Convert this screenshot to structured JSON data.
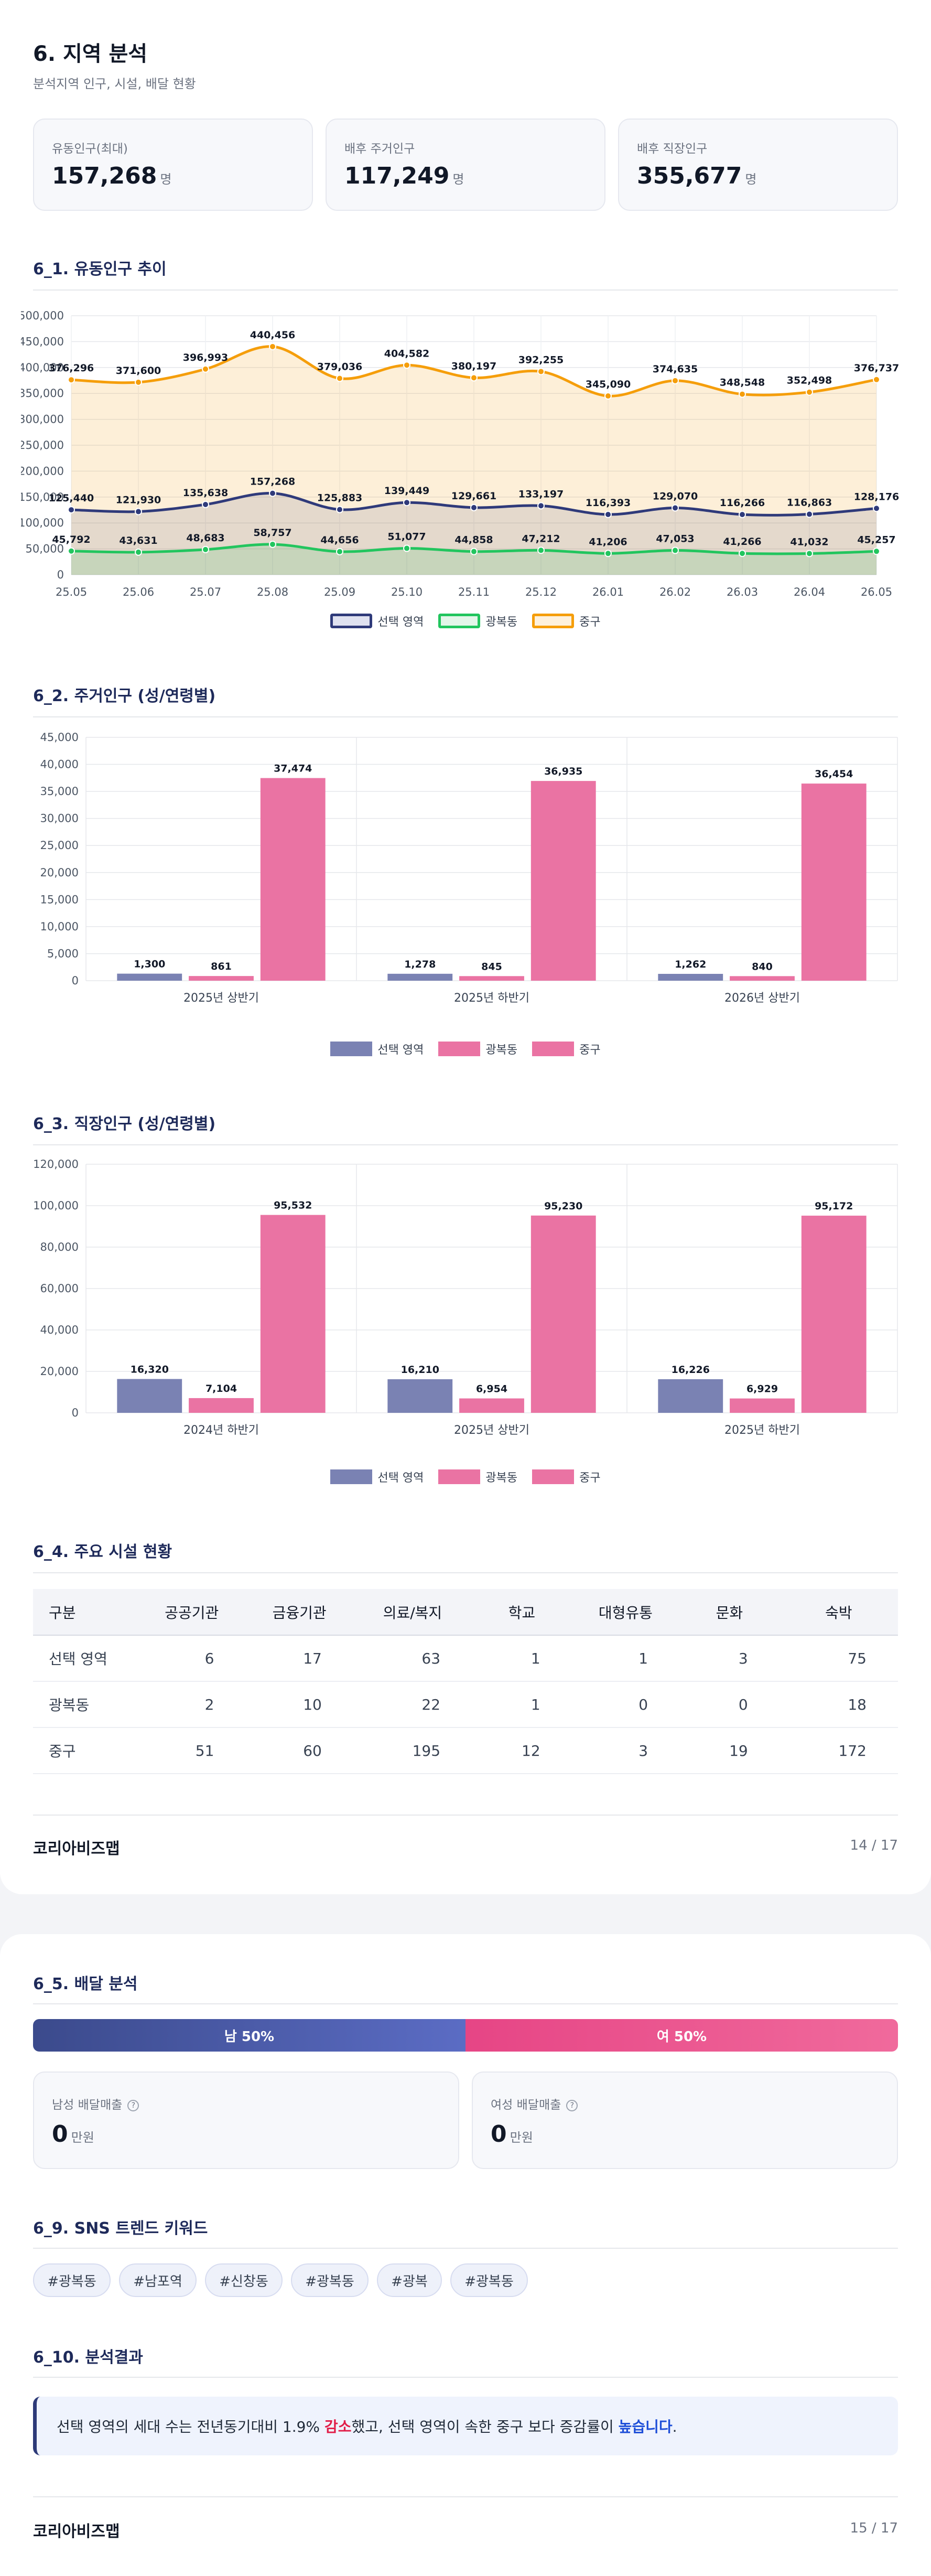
{
  "section": {
    "title": "6. 지역 분석",
    "subtitle": "분석지역 인구, 시설, 배달 현황"
  },
  "summary_cards": [
    {
      "label": "유동인구(최대)",
      "value": "157,268",
      "unit": "명"
    },
    {
      "label": "배후 주거인구",
      "value": "117,249",
      "unit": "명"
    },
    {
      "label": "배후 직장인구",
      "value": "355,677",
      "unit": "명"
    }
  ],
  "colors": {
    "selected": "#2f3a7a",
    "gwangbok": "#22c55e",
    "junggu": "#f59e0b",
    "bar_selected": "#7a82b3",
    "bar_pink": "#ea73a3"
  },
  "floating": {
    "title": "6_1. 유동인구 추이",
    "legend": [
      "선택 영역",
      "광복동",
      "중구"
    ]
  },
  "residential": {
    "title": "6_2. 주거인구 (성/연령별)",
    "legend": [
      "선택 영역",
      "광복동",
      "중구"
    ]
  },
  "workplace": {
    "title": "6_3. 직장인구 (성/연령별)",
    "legend": [
      "선택 영역",
      "광복동",
      "중구"
    ]
  },
  "chart_data": [
    {
      "type": "area",
      "x": [
        "25.05",
        "25.06",
        "25.07",
        "25.08",
        "25.09",
        "25.10",
        "25.11",
        "25.12",
        "26.01",
        "26.02",
        "26.03",
        "26.04",
        "26.05"
      ],
      "ylim": [
        0,
        500000
      ],
      "yticks": [
        "0",
        "50,000",
        "100,000",
        "150,000",
        "200,000",
        "250,000",
        "300,000",
        "350,000",
        "400,000",
        "450,000",
        "500,000"
      ],
      "series": [
        {
          "name": "선택 영역",
          "values": [
            125440,
            121930,
            135638,
            157268,
            125883,
            139449,
            129661,
            133197,
            116393,
            129070,
            116266,
            116863,
            128176
          ],
          "labels": [
            "125,440",
            "121,930",
            "135,638",
            "157,268",
            "125,883",
            "139,449",
            "129,661",
            "133,197",
            "116,393",
            "129,070",
            "116,266",
            "116,863",
            "128,176"
          ]
        },
        {
          "name": "광복동",
          "values": [
            45792,
            43631,
            48683,
            58757,
            44656,
            51077,
            44858,
            47212,
            41206,
            47053,
            41266,
            41032,
            45257
          ],
          "labels": [
            "45,792",
            "43,631",
            "48,683",
            "58,757",
            "44,656",
            "51,077",
            "44,858",
            "47,212",
            "41,206",
            "47,053",
            "41,266",
            "41,032",
            "45,257"
          ]
        },
        {
          "name": "중구",
          "values": [
            376296,
            371600,
            396993,
            440456,
            379036,
            404582,
            380197,
            392255,
            345090,
            374635,
            348548,
            352498,
            376737
          ],
          "labels": [
            "376,296",
            "371,600",
            "396,993",
            "440,456",
            "379,036",
            "404,582",
            "380,197",
            "392,255",
            "345,090",
            "374,635",
            "348,548",
            "352,498",
            "376,737"
          ]
        }
      ]
    },
    {
      "type": "bar",
      "categories": [
        "2025년 상반기",
        "2025년 하반기",
        "2026년 상반기"
      ],
      "ylim": [
        0,
        45000
      ],
      "yticks": [
        "0",
        "5,000",
        "10,000",
        "15,000",
        "20,000",
        "25,000",
        "30,000",
        "35,000",
        "40,000",
        "45,000"
      ],
      "series": [
        {
          "name": "선택 영역",
          "values": [
            1300,
            1278,
            1262
          ],
          "labels": [
            "1,300",
            "1,278",
            "1,262"
          ]
        },
        {
          "name": "광복동",
          "values": [
            861,
            845,
            840
          ],
          "labels": [
            "861",
            "845",
            "840"
          ]
        },
        {
          "name": "중구",
          "values": [
            37474,
            36935,
            36454
          ],
          "labels": [
            "37,474",
            "36,935",
            "36,454"
          ]
        }
      ]
    },
    {
      "type": "bar",
      "categories": [
        "2024년 하반기",
        "2025년 상반기",
        "2025년 하반기"
      ],
      "ylim": [
        0,
        120000
      ],
      "yticks": [
        "0",
        "20,000",
        "40,000",
        "60,000",
        "80,000",
        "100,000",
        "120,000"
      ],
      "series": [
        {
          "name": "선택 영역",
          "values": [
            16320,
            16210,
            16226
          ],
          "labels": [
            "16,320",
            "16,210",
            "16,226"
          ]
        },
        {
          "name": "광복동",
          "values": [
            7104,
            6954,
            6929
          ],
          "labels": [
            "7,104",
            "6,954",
            "6,929"
          ]
        },
        {
          "name": "중구",
          "values": [
            95532,
            95230,
            95172
          ],
          "labels": [
            "95,532",
            "95,230",
            "95,172"
          ]
        }
      ]
    }
  ],
  "facilities": {
    "title": "6_4. 주요 시설 현황",
    "headers": [
      "구분",
      "공공기관",
      "금융기관",
      "의료/복지",
      "학교",
      "대형유통",
      "문화",
      "숙박"
    ],
    "rows": [
      [
        "선택 영역",
        "6",
        "17",
        "63",
        "1",
        "1",
        "3",
        "75"
      ],
      [
        "광복동",
        "2",
        "10",
        "22",
        "1",
        "0",
        "0",
        "18"
      ],
      [
        "중구",
        "51",
        "60",
        "195",
        "12",
        "3",
        "19",
        "172"
      ]
    ]
  },
  "footer1": {
    "brand": "코리아비즈맵",
    "page": "14 / 17"
  },
  "delivery": {
    "title": "6_5. 배달 분석",
    "male_label": "남 50%",
    "female_label": "여 50%",
    "male_pct": 50,
    "cards": [
      {
        "label": "남성 배달매출",
        "value": "0",
        "unit": "만원"
      },
      {
        "label": "여성 배달매출",
        "value": "0",
        "unit": "만원"
      }
    ]
  },
  "sns": {
    "title": "6_9. SNS 트렌드 키워드",
    "tags": [
      "#광복동",
      "#남포역",
      "#신창동",
      "#광복동",
      "#광복",
      "#광복동"
    ]
  },
  "result": {
    "title": "6_10. 분석결과",
    "text_1": "선택 영역의 세대 수는 전년동기대비 1.9% ",
    "down": "감소",
    "text_2": "했고, 선택 영역이 속한 중구 보다 증감률이 ",
    "up": "높습니다",
    "text_3": "."
  },
  "footer2": {
    "brand": "코리아비즈맵",
    "page": "15 / 17"
  }
}
